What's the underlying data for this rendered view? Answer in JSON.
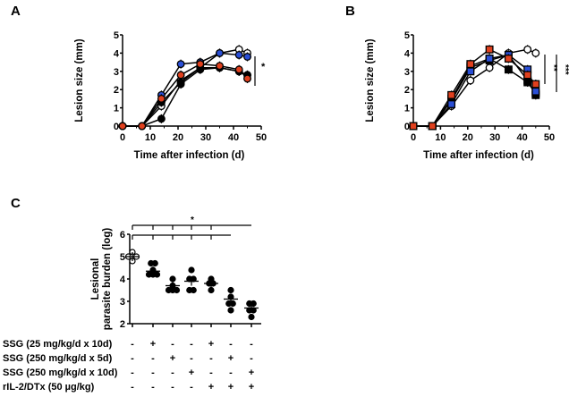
{
  "chart_data": [
    {
      "panel": "A",
      "type": "line",
      "xlabel": "Time after infection (d)",
      "ylabel": "Lesion size (mm)",
      "xlim": [
        0,
        50
      ],
      "ylim": [
        0,
        5
      ],
      "xticks": [
        "0",
        "10",
        "20",
        "30",
        "40",
        "50"
      ],
      "yticks": [
        "0",
        "1",
        "2",
        "3",
        "4",
        "5"
      ],
      "significance": "*",
      "x": [
        0,
        7,
        14,
        21,
        28,
        35,
        42,
        45
      ],
      "series": [
        {
          "name": "open-circle",
          "marker": "circle",
          "fill": "#ffffff",
          "values": [
            0,
            0,
            1.1,
            2.5,
            3.2,
            4.0,
            4.2,
            4.0
          ]
        },
        {
          "name": "black-circle-2",
          "marker": "circle",
          "fill": "#000000",
          "values": [
            0,
            0,
            1.3,
            2.4,
            3.2,
            3.2,
            3.0,
            2.8
          ]
        },
        {
          "name": "black-circle",
          "marker": "circle",
          "fill": "#000000",
          "values": [
            0,
            0,
            0.4,
            2.3,
            3.1,
            3.2,
            3.0,
            2.8
          ]
        },
        {
          "name": "blue-circle",
          "marker": "circle",
          "fill": "#2a4fd6",
          "values": [
            0,
            0,
            1.7,
            3.4,
            3.5,
            4.0,
            3.9,
            3.8
          ]
        },
        {
          "name": "red-circle",
          "marker": "circle",
          "fill": "#e0401e",
          "values": [
            0,
            0,
            1.5,
            2.8,
            3.4,
            3.3,
            3.1,
            2.6
          ]
        }
      ]
    },
    {
      "panel": "B",
      "type": "line",
      "xlabel": "Time after infection (d)",
      "ylabel": "Lesion size (mm)",
      "xlim": [
        0,
        50
      ],
      "ylim": [
        0,
        5
      ],
      "xticks": [
        "0",
        "10",
        "20",
        "30",
        "40",
        "50"
      ],
      "yticks": [
        "0",
        "1",
        "2",
        "3",
        "4",
        "5"
      ],
      "significance": [
        "**",
        "***"
      ],
      "x": [
        0,
        7,
        14,
        21,
        28,
        35,
        42,
        45
      ],
      "series": [
        {
          "name": "open-circle",
          "marker": "circle",
          "fill": "#ffffff",
          "values": [
            0,
            0,
            1.1,
            2.5,
            3.2,
            4.0,
            4.2,
            4.0
          ]
        },
        {
          "name": "black-square-2",
          "marker": "square",
          "fill": "#000000",
          "values": [
            0,
            0,
            1.4,
            3.2,
            3.6,
            3.9,
            2.5,
            1.7
          ]
        },
        {
          "name": "black-square",
          "marker": "square",
          "fill": "#000000",
          "values": [
            0,
            0,
            1.5,
            3.3,
            3.7,
            3.1,
            2.4,
            1.8
          ]
        },
        {
          "name": "blue-square",
          "marker": "square",
          "fill": "#2a4fd6",
          "values": [
            0,
            0,
            1.2,
            3.0,
            3.7,
            3.9,
            3.1,
            1.9
          ]
        },
        {
          "name": "red-square",
          "marker": "square",
          "fill": "#e0401e",
          "values": [
            0,
            0,
            1.7,
            3.4,
            4.2,
            3.7,
            2.8,
            2.3
          ]
        }
      ]
    },
    {
      "panel": "C",
      "type": "scatter",
      "ylabel_lines": [
        "Lesional",
        "parasite burden (log)"
      ],
      "ylim": [
        2,
        6
      ],
      "yticks": [
        "2",
        "3",
        "4",
        "5",
        "6"
      ],
      "significance": "*",
      "groups": [
        {
          "open": true,
          "points": [
            5.2,
            5.0,
            5.0,
            4.8,
            5.0
          ],
          "mean": 5.0
        },
        {
          "points": [
            4.7,
            4.7,
            4.4,
            4.2,
            4.2,
            4.2
          ],
          "mean": 4.35
        },
        {
          "points": [
            4.0,
            3.7,
            3.5,
            3.5,
            3.5
          ],
          "mean": 3.7
        },
        {
          "points": [
            4.0,
            4.4,
            3.5,
            3.5,
            4.0
          ],
          "mean": 3.9
        },
        {
          "points": [
            4.0,
            3.8,
            3.8,
            3.5
          ],
          "mean": 3.8
        },
        {
          "points": [
            3.5,
            3.2,
            2.9,
            2.9,
            2.6
          ],
          "mean": 3.1
        },
        {
          "points": [
            2.9,
            2.9,
            2.6,
            2.6,
            2.3
          ],
          "mean": 2.7
        }
      ],
      "treatments": [
        {
          "label": "SSG (25 mg/kg/d x 10d)",
          "marks": [
            "-",
            "+",
            "-",
            "-",
            "+",
            "-",
            "-"
          ]
        },
        {
          "label": "SSG (250 mg/kg/d x 5d)",
          "marks": [
            "-",
            "-",
            "+",
            "-",
            "-",
            "+",
            "-"
          ]
        },
        {
          "label": "SSG (250 mg/kg/d x 10d)",
          "marks": [
            "-",
            "-",
            "-",
            "+",
            "-",
            "-",
            "+"
          ]
        },
        {
          "label": "rIL-2/DTx (50 µg/kg)",
          "marks": [
            "-",
            "-",
            "-",
            "-",
            "+",
            "+",
            "+"
          ]
        }
      ]
    }
  ],
  "panel_labels": [
    "A",
    "B",
    "C"
  ]
}
